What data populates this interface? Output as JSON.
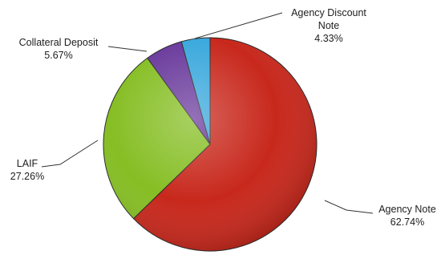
{
  "chart_data": {
    "type": "pie",
    "title": "",
    "start": "12 o'clock, clockwise",
    "legend": "none (callout labels)",
    "slices": [
      {
        "name": "Agency Note",
        "name_lines": [
          "Agency Note"
        ],
        "value": 62.74,
        "pct_label": "62.74%",
        "color": "#c8281c"
      },
      {
        "name": "LAIF",
        "name_lines": [
          "LAIF"
        ],
        "value": 27.26,
        "pct_label": "27.26%",
        "color": "#86be24"
      },
      {
        "name": "Collateral Deposit",
        "name_lines": [
          "Collateral Deposit"
        ],
        "value": 5.67,
        "pct_label": "5.67%",
        "color": "#6a3a9c"
      },
      {
        "name": "Agency Discount Note",
        "name_lines": [
          "Agency Discount",
          "Note"
        ],
        "value": 4.33,
        "pct_label": "4.33%",
        "color": "#3aa8dc"
      }
    ]
  }
}
